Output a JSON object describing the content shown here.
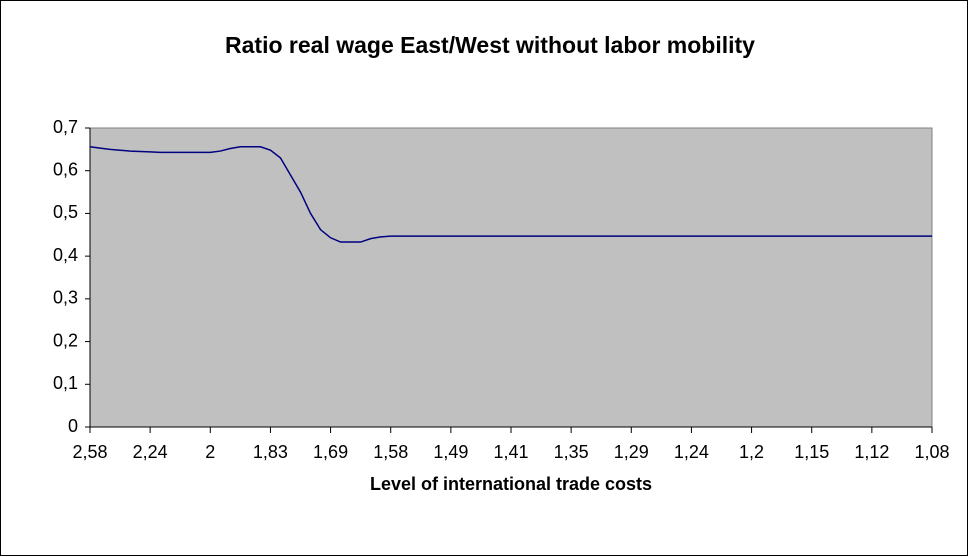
{
  "chart_data": {
    "type": "line",
    "title": "Ratio real wage East/West without labor mobility",
    "x_label": "Level of international trade costs",
    "categories": [
      "2,58",
      null,
      null,
      null,
      null,
      null,
      "2,24",
      null,
      null,
      null,
      null,
      null,
      "2",
      null,
      null,
      null,
      null,
      null,
      "1,83",
      null,
      null,
      null,
      null,
      null,
      "1,69",
      null,
      null,
      null,
      null,
      null,
      "1,58",
      null,
      null,
      null,
      null,
      null,
      "1,49",
      null,
      null,
      null,
      null,
      null,
      "1,41",
      null,
      null,
      null,
      null,
      null,
      "1,35",
      null,
      null,
      null,
      null,
      null,
      "1,29",
      null,
      null,
      null,
      null,
      null,
      "1,24",
      null,
      null,
      null,
      null,
      null,
      "1,2",
      null,
      null,
      null,
      null,
      null,
      "1,15",
      null,
      null,
      null,
      null,
      null,
      "1,12",
      null,
      null,
      null,
      null,
      null,
      "1,08"
    ],
    "series": [
      {
        "color": "#000080",
        "values": [
          0.656,
          0.653,
          0.65,
          0.648,
          0.646,
          0.645,
          0.644,
          0.643,
          0.643,
          0.643,
          0.643,
          0.643,
          0.643,
          0.646,
          0.652,
          0.656,
          0.656,
          0.656,
          0.648,
          0.63,
          0.59,
          0.55,
          0.5,
          0.462,
          0.443,
          0.433,
          0.433,
          0.433,
          0.441,
          0.445,
          0.447,
          0.447,
          0.447,
          0.447,
          0.447,
          0.447,
          0.447,
          0.447,
          0.447,
          0.447,
          0.447,
          0.447,
          0.447,
          0.447,
          0.447,
          0.447,
          0.447,
          0.447,
          0.447,
          0.447,
          0.447,
          0.447,
          0.447,
          0.447,
          0.447,
          0.447,
          0.447,
          0.447,
          0.447,
          0.447,
          0.447,
          0.447,
          0.447,
          0.447,
          0.447,
          0.447,
          0.447,
          0.447,
          0.447,
          0.447,
          0.447,
          0.447,
          0.447,
          0.447,
          0.447,
          0.447,
          0.447,
          0.447,
          0.447,
          0.447,
          0.447,
          0.447,
          0.447,
          0.447,
          0.447
        ]
      }
    ],
    "ylim": [
      0,
      0.7
    ],
    "yticks": [
      0,
      {
        "value": 0.1,
        "label": "0,1"
      },
      {
        "value": 0.2,
        "label": "0,2"
      },
      {
        "value": 0.3,
        "label": "0,3"
      },
      {
        "value": 0.4,
        "label": "0,4"
      },
      {
        "value": 0.5,
        "label": "0,5"
      },
      {
        "value": 0.6,
        "label": "0,6"
      },
      {
        "value": 0.7,
        "label": "0,7"
      }
    ],
    "plot_background": "#c0c0c0"
  }
}
